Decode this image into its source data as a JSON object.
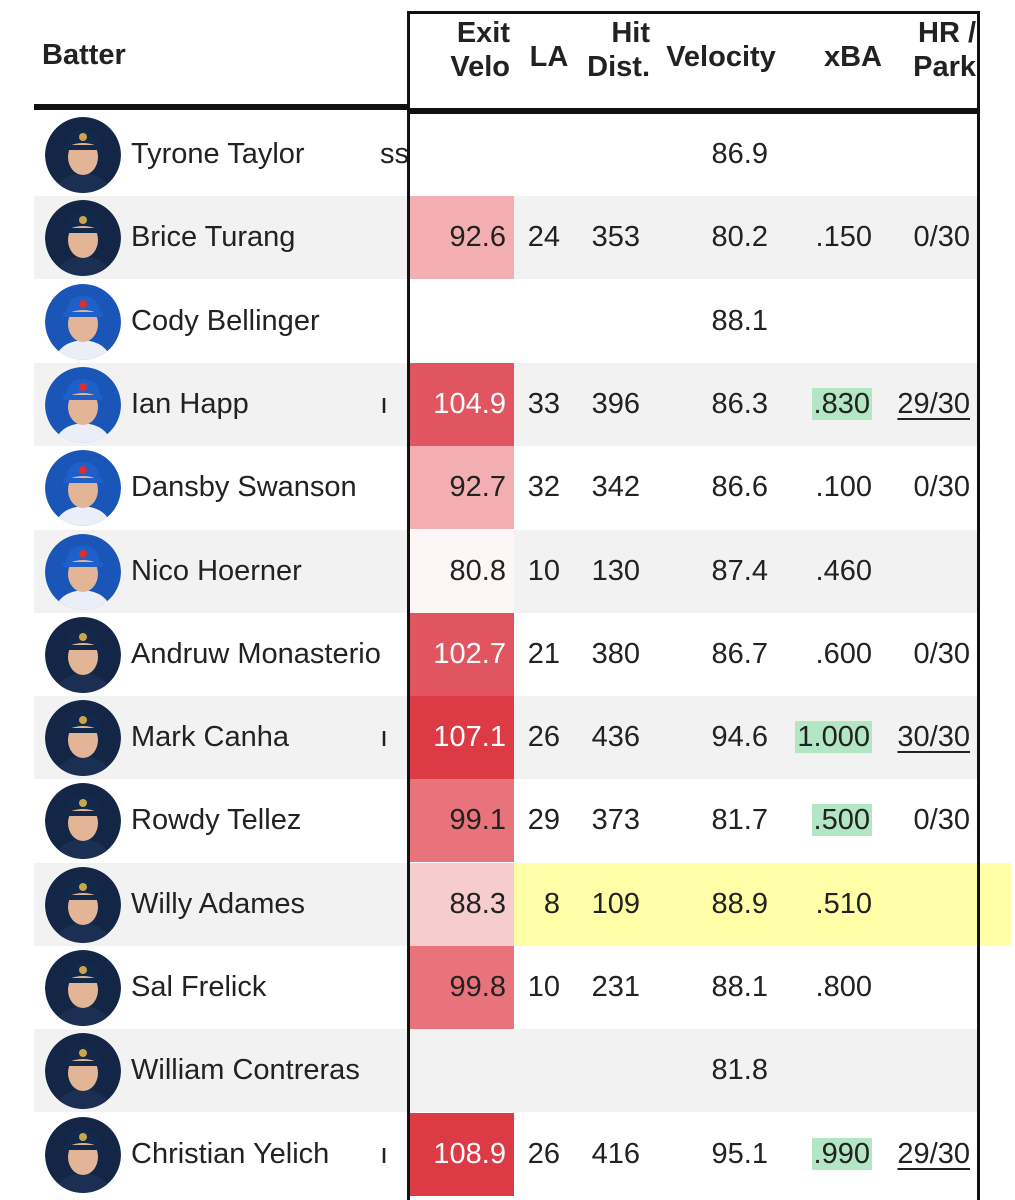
{
  "header": {
    "batter": "Batter",
    "exit_velo_1": "Exit",
    "exit_velo_2": "Velo",
    "la": "LA",
    "hit_dist_1": "Hit",
    "hit_dist_2": "Dist.",
    "velocity": "Velocity",
    "xba": "xBA",
    "hr_park_1": "HR /",
    "hr_park_2": "Park"
  },
  "colors": {
    "ev_light": "#f2aeb0",
    "ev_lighter": "#f6cccd",
    "ev_faint": "#fdf6f6",
    "ev_mid": "#e9737a",
    "ev_strong": "#e05560",
    "ev_max": "#dc3a45",
    "xba_green": "#b3e6c3",
    "row_highlight": "#ffffa8"
  },
  "rows": [
    {
      "name": "Tyrone Taylor",
      "frag": "ss",
      "team": "brewers",
      "ev": "",
      "la": "",
      "dist": "",
      "vel": "86.9",
      "xba": "",
      "hr": ""
    },
    {
      "name": "Brice Turang",
      "frag": "",
      "team": "brewers",
      "ev": "92.6",
      "la": "24",
      "dist": "353",
      "vel": "80.2",
      "xba": ".150",
      "hr": "0/30"
    },
    {
      "name": "Cody Bellinger",
      "frag": "",
      "team": "cubs",
      "ev": "",
      "la": "",
      "dist": "",
      "vel": "88.1",
      "xba": "",
      "hr": ""
    },
    {
      "name": "Ian Happ",
      "frag": "ı",
      "team": "cubs",
      "ev": "104.9",
      "la": "33",
      "dist": "396",
      "vel": "86.3",
      "xba": ".830",
      "hr": "29/30"
    },
    {
      "name": "Dansby Swanson",
      "frag": "",
      "team": "cubs",
      "ev": "92.7",
      "la": "32",
      "dist": "342",
      "vel": "86.6",
      "xba": ".100",
      "hr": "0/30"
    },
    {
      "name": "Nico Hoerner",
      "frag": "",
      "team": "cubs",
      "ev": "80.8",
      "la": "10",
      "dist": "130",
      "vel": "87.4",
      "xba": ".460",
      "hr": ""
    },
    {
      "name": "Andruw Monasterio",
      "frag": "",
      "team": "brewers",
      "ev": "102.7",
      "la": "21",
      "dist": "380",
      "vel": "86.7",
      "xba": ".600",
      "hr": "0/30"
    },
    {
      "name": "Mark Canha",
      "frag": "ı",
      "team": "brewers",
      "ev": "107.1",
      "la": "26",
      "dist": "436",
      "vel": "94.6",
      "xba": "1.000",
      "hr": "30/30"
    },
    {
      "name": "Rowdy Tellez",
      "frag": "",
      "team": "brewers",
      "ev": "99.1",
      "la": "29",
      "dist": "373",
      "vel": "81.7",
      "xba": ".500",
      "hr": "0/30"
    },
    {
      "name": "Willy Adames",
      "frag": "",
      "team": "brewers",
      "ev": "88.3",
      "la": "8",
      "dist": "109",
      "vel": "88.9",
      "xba": ".510",
      "hr": ""
    },
    {
      "name": "Sal Frelick",
      "frag": "",
      "team": "brewers",
      "ev": "99.8",
      "la": "10",
      "dist": "231",
      "vel": "88.1",
      "xba": ".800",
      "hr": ""
    },
    {
      "name": "William Contreras",
      "frag": "",
      "team": "brewers",
      "ev": "",
      "la": "",
      "dist": "",
      "vel": "81.8",
      "xba": "",
      "hr": ""
    },
    {
      "name": "Christian Yelich",
      "frag": "ı",
      "team": "brewers",
      "ev": "108.9",
      "la": "26",
      "dist": "416",
      "vel": "95.1",
      "xba": ".990",
      "hr": "29/30"
    }
  ]
}
